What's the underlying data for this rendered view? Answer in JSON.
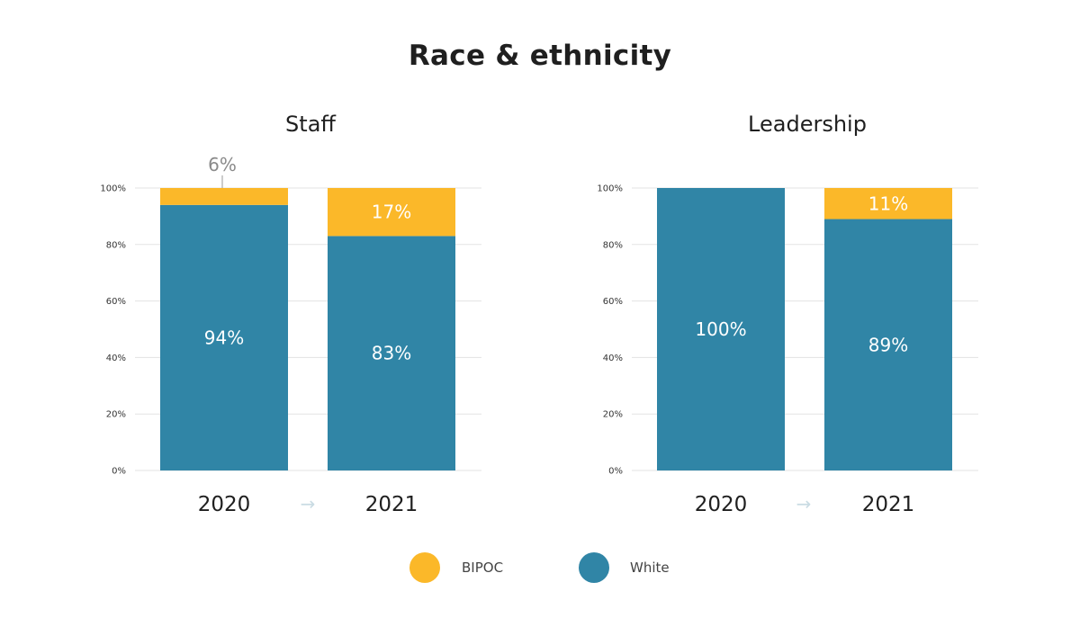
{
  "title": "Race & ethnicity",
  "colors": {
    "BIPOC": "#fbb829",
    "White": "#3085a6",
    "grid": "#e3e3e3",
    "arrow": "#c9dbe3",
    "callout": "#9a9a9a"
  },
  "legend": [
    {
      "label": "BIPOC",
      "color": "#fbb829"
    },
    {
      "label": "White",
      "color": "#3085a6"
    }
  ],
  "arrow_glyph": "→",
  "chart_data": [
    {
      "type": "bar",
      "stacked": true,
      "title": "Staff",
      "categories": [
        "2020",
        "2021"
      ],
      "series": [
        {
          "name": "White",
          "values": [
            94,
            83
          ],
          "labels": [
            "94%",
            "83%"
          ]
        },
        {
          "name": "BIPOC",
          "values": [
            6,
            17
          ],
          "labels": [
            "6%",
            "17%"
          ]
        }
      ],
      "ylim": [
        0,
        100
      ],
      "yticks": [
        "0%",
        "20%",
        "40%",
        "60%",
        "80%",
        "100%"
      ],
      "grid": true
    },
    {
      "type": "bar",
      "stacked": true,
      "title": "Leadership",
      "categories": [
        "2020",
        "2021"
      ],
      "series": [
        {
          "name": "White",
          "values": [
            100,
            89
          ],
          "labels": [
            "100%",
            "89%"
          ]
        },
        {
          "name": "BIPOC",
          "values": [
            0,
            11
          ],
          "labels": [
            "",
            "11%"
          ]
        }
      ],
      "ylim": [
        0,
        100
      ],
      "yticks": [
        "0%",
        "20%",
        "40%",
        "60%",
        "80%",
        "100%"
      ],
      "grid": true
    }
  ]
}
